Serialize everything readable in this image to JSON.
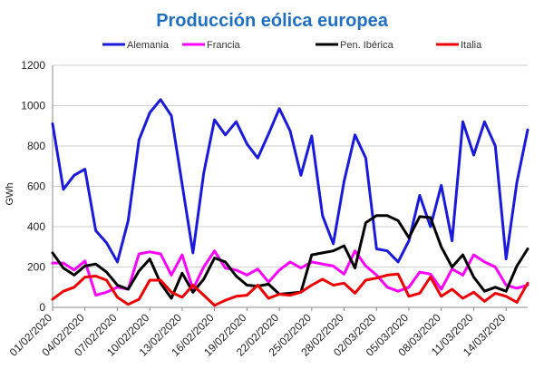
{
  "chart_data": {
    "type": "line",
    "title": "Producción eólica europea",
    "ylabel": "GWh",
    "xlabel": "",
    "ylim": [
      0,
      1200
    ],
    "yticks": [
      0,
      200,
      400,
      600,
      800,
      1000,
      1200
    ],
    "grid": true,
    "legend_position": "top",
    "x_tick_labels": [
      "01/02/2020",
      "04/02/2020",
      "07/02/2020",
      "10/02/2020",
      "13/02/2020",
      "16/02/2020",
      "19/02/2020",
      "22/02/2020",
      "25/02/2020",
      "28/02/2020",
      "02/03/2020",
      "05/03/2020",
      "08/03/2020",
      "11/03/2020",
      "14/03/2020"
    ],
    "x": [
      "01/02/2020",
      "02/02/2020",
      "03/02/2020",
      "04/02/2020",
      "05/02/2020",
      "06/02/2020",
      "07/02/2020",
      "08/02/2020",
      "09/02/2020",
      "10/02/2020",
      "11/02/2020",
      "12/02/2020",
      "13/02/2020",
      "14/02/2020",
      "15/02/2020",
      "16/02/2020",
      "17/02/2020",
      "18/02/2020",
      "19/02/2020",
      "20/02/2020",
      "21/02/2020",
      "22/02/2020",
      "23/02/2020",
      "24/02/2020",
      "25/02/2020",
      "26/02/2020",
      "27/02/2020",
      "28/02/2020",
      "29/02/2020",
      "01/03/2020",
      "02/03/2020",
      "03/03/2020",
      "04/03/2020",
      "05/03/2020",
      "06/03/2020",
      "07/03/2020",
      "08/03/2020",
      "09/03/2020",
      "10/03/2020",
      "11/03/2020",
      "12/03/2020",
      "13/03/2020",
      "14/03/2020",
      "15/03/2020",
      "16/03/2020"
    ],
    "series": [
      {
        "name": "Alemania",
        "color": "#1a1adc",
        "values": [
          910,
          585,
          655,
          685,
          380,
          320,
          225,
          430,
          830,
          965,
          1030,
          950,
          610,
          270,
          665,
          930,
          855,
          920,
          810,
          740,
          860,
          985,
          875,
          655,
          850,
          455,
          315,
          625,
          855,
          740,
          290,
          280,
          225,
          330,
          555,
          400,
          605,
          330,
          920,
          755,
          920,
          800,
          240,
          620,
          880
        ]
      },
      {
        "name": "Francia",
        "color": "#ff00ff",
        "values": [
          220,
          220,
          185,
          230,
          60,
          75,
          100,
          90,
          265,
          275,
          265,
          160,
          260,
          90,
          200,
          280,
          195,
          185,
          160,
          190,
          125,
          185,
          225,
          195,
          225,
          215,
          205,
          165,
          280,
          205,
          160,
          100,
          80,
          100,
          175,
          165,
          90,
          190,
          160,
          260,
          225,
          200,
          110,
          95,
          110
        ]
      },
      {
        "name": "Pen. Ibérica",
        "color": "#000000",
        "values": [
          270,
          195,
          160,
          205,
          215,
          175,
          110,
          90,
          180,
          240,
          120,
          45,
          170,
          75,
          140,
          245,
          225,
          155,
          110,
          105,
          115,
          65,
          70,
          75,
          260,
          270,
          280,
          305,
          195,
          420,
          455,
          455,
          430,
          345,
          450,
          445,
          300,
          200,
          260,
          150,
          80,
          100,
          80,
          205,
          290
        ]
      },
      {
        "name": "Italia",
        "color": "#ee0000",
        "values": [
          40,
          80,
          100,
          150,
          155,
          135,
          50,
          15,
          40,
          135,
          135,
          75,
          50,
          110,
          60,
          10,
          35,
          55,
          60,
          110,
          45,
          65,
          60,
          75,
          110,
          140,
          110,
          120,
          70,
          135,
          145,
          160,
          165,
          55,
          70,
          150,
          55,
          90,
          45,
          75,
          30,
          70,
          55,
          25,
          120
        ]
      }
    ]
  }
}
